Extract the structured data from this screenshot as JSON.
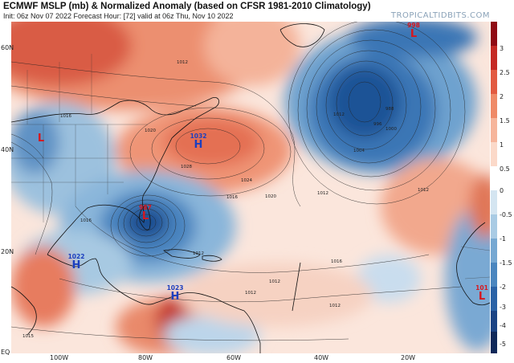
{
  "header": {
    "title": "ECMWF MSLP (mb) & Normalized Anomaly (based on CFSR 1981-2010 Climatology)",
    "subtitle": "Init: 06z Nov 07 2022   Forecast Hour: [72]   valid at 06z Thu, Nov 10 2022",
    "brand": "TROPICALTIDBITS.COM"
  },
  "axes": {
    "lat_labels": [
      "60N",
      "40N",
      "20N",
      "EQ"
    ],
    "lon_labels": [
      "100W",
      "80W",
      "60W",
      "40W",
      "20W"
    ]
  },
  "colorbar": {
    "ticks": [
      "3",
      "2.5",
      "2",
      "1.5",
      "1",
      "0.5",
      "0",
      "-0.5",
      "-1",
      "-1.5",
      "-2",
      "-3",
      "-4",
      "-5"
    ]
  },
  "systems": [
    {
      "type": "L",
      "value": "987",
      "color": "#d6171e"
    },
    {
      "type": "H",
      "value": "1032",
      "color": "#1c3fbf"
    },
    {
      "type": "L",
      "value": "998",
      "color": "#d6171e"
    },
    {
      "type": "H",
      "value": "1022",
      "color": "#1c3fbf"
    },
    {
      "type": "H",
      "value": "1023",
      "color": "#1c3fbf"
    },
    {
      "type": "L",
      "value": "",
      "color": "#d6171e"
    },
    {
      "type": "L",
      "value": "101",
      "color": "#d6171e"
    }
  ],
  "isobar_labels": [
    "1012",
    "1016",
    "1020",
    "1024",
    "1028",
    "1016",
    "1020",
    "1012",
    "1016",
    "1012",
    "1012",
    "1004",
    "996",
    "988",
    "1000",
    "1012",
    "1012",
    "1016",
    "1012",
    "1015",
    "1012"
  ]
}
